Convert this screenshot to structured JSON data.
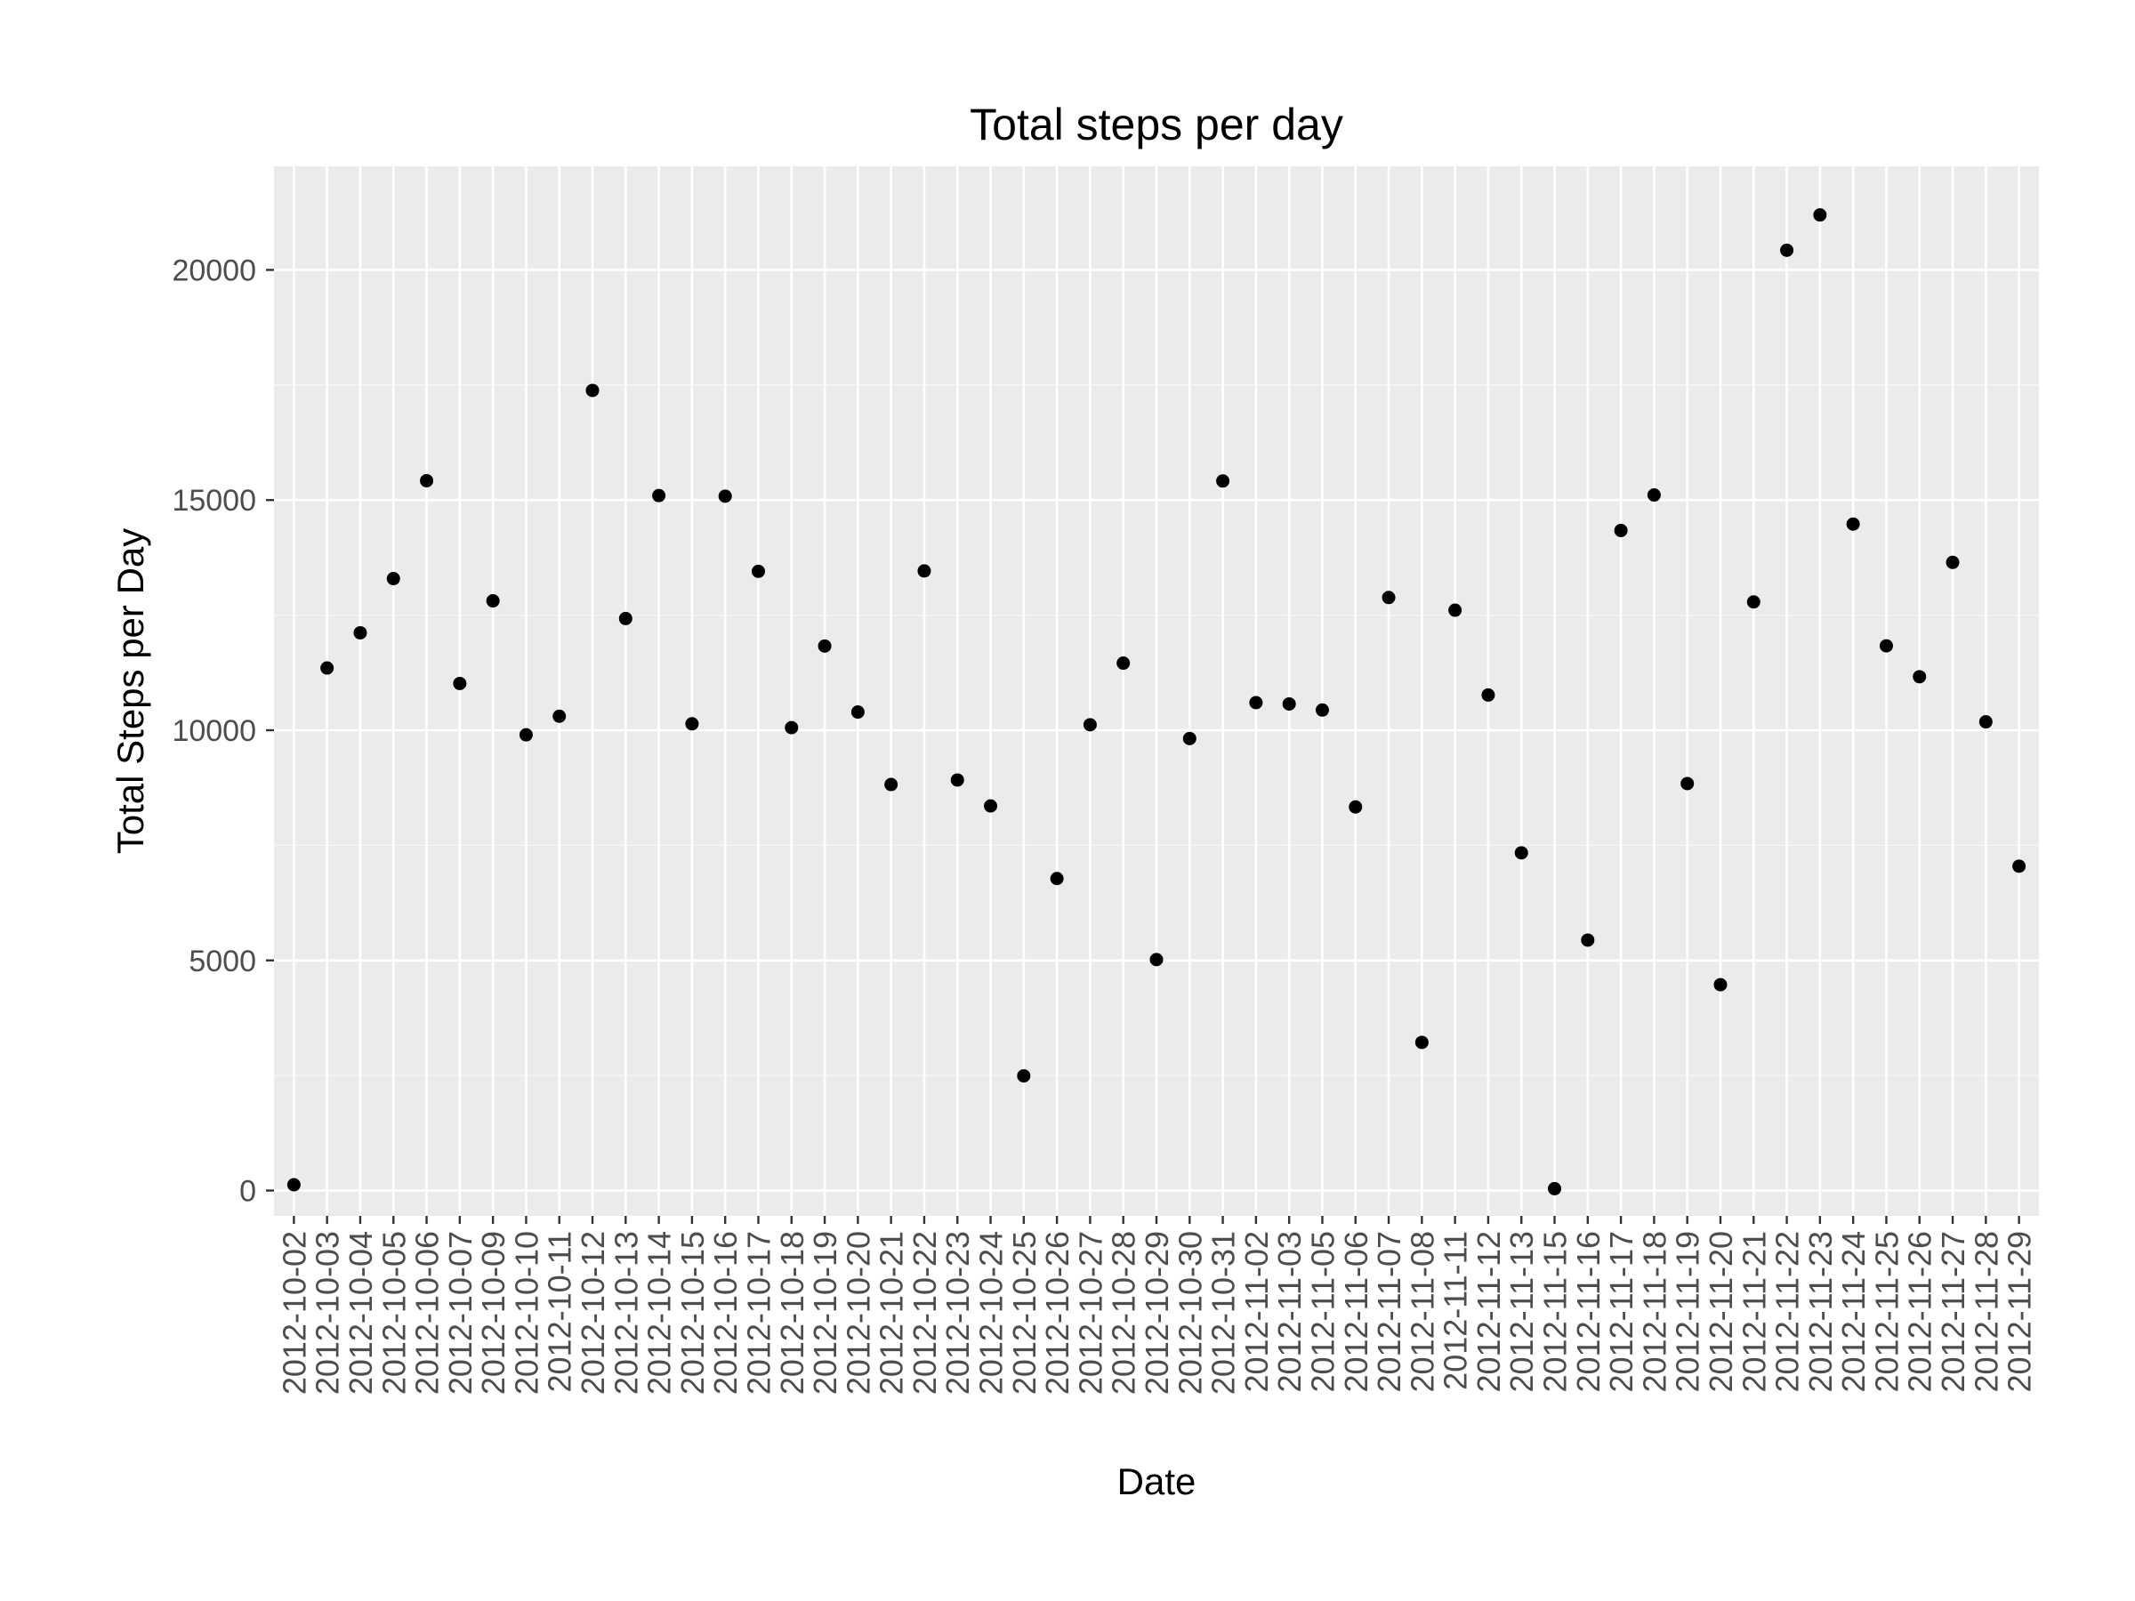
{
  "chart_data": {
    "type": "scatter",
    "title": "Total steps per day",
    "xlabel": "Date",
    "ylabel": "Total Steps per Day",
    "ylim": [
      -550,
      22250
    ],
    "yticks": [
      0,
      5000,
      10000,
      15000,
      20000
    ],
    "grid": true,
    "legend": "none",
    "colors": {
      "panel": "#ebebeb",
      "grid": "#ffffff",
      "point": "#000000",
      "tick_text": "#4d4d4d"
    },
    "x": [
      "2012-10-02",
      "2012-10-03",
      "2012-10-04",
      "2012-10-05",
      "2012-10-06",
      "2012-10-07",
      "2012-10-09",
      "2012-10-10",
      "2012-10-11",
      "2012-10-12",
      "2012-10-13",
      "2012-10-14",
      "2012-10-15",
      "2012-10-16",
      "2012-10-17",
      "2012-10-18",
      "2012-10-19",
      "2012-10-20",
      "2012-10-21",
      "2012-10-22",
      "2012-10-23",
      "2012-10-24",
      "2012-10-25",
      "2012-10-26",
      "2012-10-27",
      "2012-10-28",
      "2012-10-29",
      "2012-10-30",
      "2012-10-31",
      "2012-11-02",
      "2012-11-03",
      "2012-11-05",
      "2012-11-06",
      "2012-11-07",
      "2012-11-08",
      "2012-11-11",
      "2012-11-12",
      "2012-11-13",
      "2012-11-15",
      "2012-11-16",
      "2012-11-17",
      "2012-11-18",
      "2012-11-19",
      "2012-11-20",
      "2012-11-21",
      "2012-11-22",
      "2012-11-23",
      "2012-11-24",
      "2012-11-25",
      "2012-11-26",
      "2012-11-27",
      "2012-11-28",
      "2012-11-29"
    ],
    "y": [
      126,
      11352,
      12116,
      13294,
      15420,
      11015,
      12811,
      9900,
      10304,
      17382,
      12426,
      15098,
      10139,
      15084,
      13452,
      10056,
      11829,
      10395,
      8821,
      13460,
      8918,
      8355,
      2492,
      6778,
      10119,
      11458,
      5018,
      9819,
      15414,
      10600,
      10571,
      10439,
      8334,
      12883,
      3219,
      12608,
      10765,
      7336,
      41,
      5441,
      14339,
      15110,
      8841,
      4472,
      12787,
      20427,
      21194,
      14478,
      11834,
      11162,
      13646,
      10183,
      7047
    ]
  }
}
